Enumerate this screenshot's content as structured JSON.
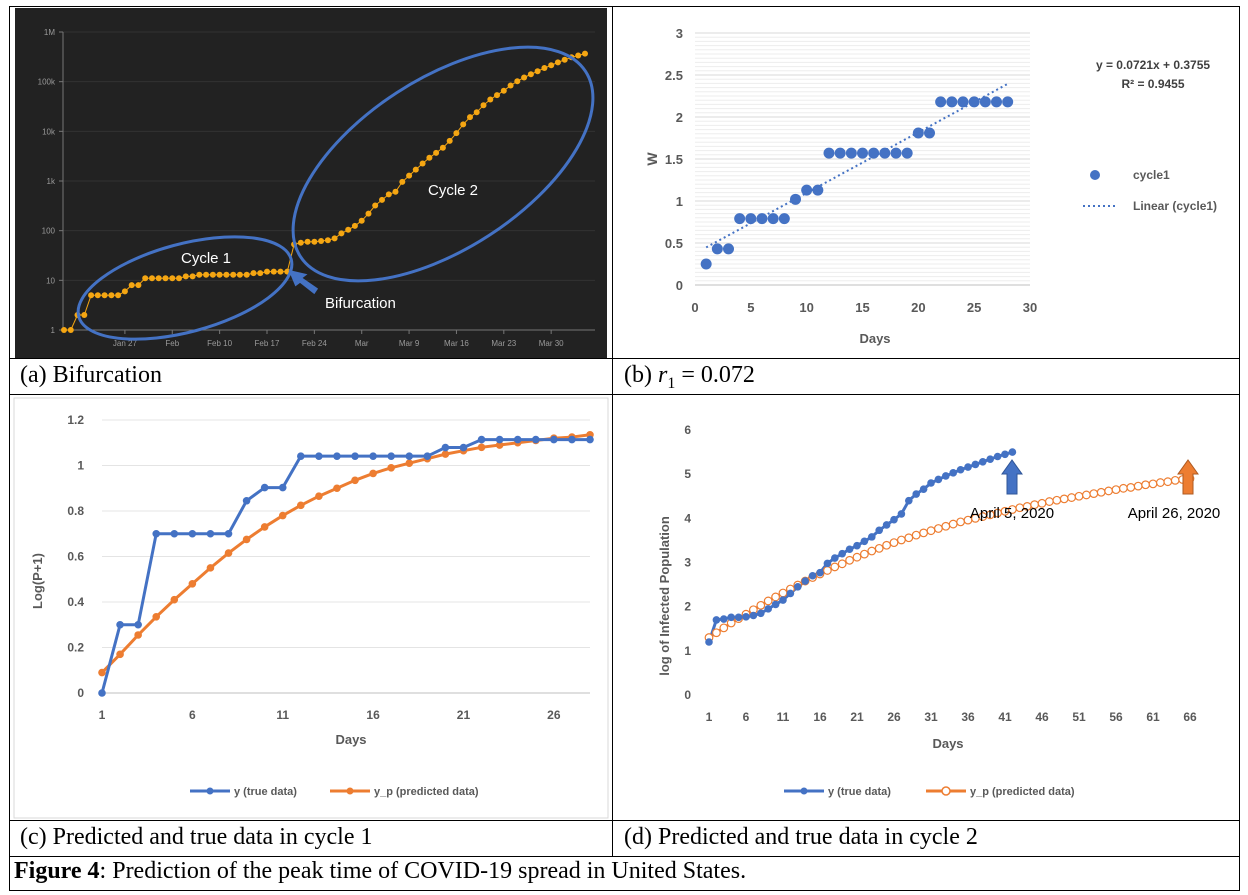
{
  "captions": {
    "a": "(a)  Bifurcation",
    "b_prefix": "(b) ",
    "b_var": "r",
    "b_sub": "1",
    "b_suffix": " = 0.072",
    "c": "(c)  Predicted and true data in cycle 1",
    "d": "(d)  Predicted and true data in cycle 2",
    "figure_label": "Figure 4",
    "figure_text": ": Prediction of the peak time of COVID-19 spread in United States."
  },
  "colors": {
    "orange": "#ED7D31",
    "blue": "#4472C4",
    "dark_bg": "#222222",
    "gold": "#F5A612"
  },
  "chart_data": [
    {
      "type": "scatter",
      "title": "",
      "yscale": "log",
      "ylim": [
        1,
        1000000
      ],
      "ytick_labels": [
        "1M",
        "100k",
        "10k",
        "1k",
        "100",
        "10",
        "1"
      ],
      "xtick_labels": [
        "Jan 27",
        "Feb",
        "Feb 10",
        "Feb 17",
        "Feb 24",
        "Mar",
        "Mar 9",
        "Mar 16",
        "Mar 23",
        "Mar 30"
      ],
      "annotations": [
        "Cycle 1",
        "Cycle 2",
        "Bifurcation"
      ],
      "series": [
        {
          "values": [
            1,
            1,
            2,
            2,
            5,
            5,
            5,
            5,
            5,
            6,
            8,
            8,
            11,
            11,
            11,
            11,
            11,
            11,
            12,
            12,
            13,
            13,
            13,
            13,
            13,
            13,
            13,
            13,
            14,
            14,
            15,
            15,
            15,
            15,
            53,
            57,
            60,
            60,
            62,
            64,
            70,
            88,
            104,
            125,
            159,
            221,
            321,
            417,
            537,
            605,
            959,
            1285,
            1697,
            2247,
            2943,
            3680,
            4663,
            6411,
            9197,
            13779,
            19383,
            24207,
            33546,
            43734,
            53740,
            65778,
            83836,
            101657,
            121478,
            140886,
            161807,
            188172,
            213372,
            243762,
            275586,
            308850,
            337072,
            366667
          ]
        }
      ]
    },
    {
      "type": "scatter",
      "title": "",
      "xlabel": "Days",
      "ylabel": "W",
      "xlim": [
        0,
        30
      ],
      "ylim": [
        0,
        3
      ],
      "xticks": [
        0,
        5,
        10,
        15,
        20,
        25,
        30
      ],
      "yticks": [
        0,
        0.5,
        1,
        1.5,
        2,
        2.5,
        3
      ],
      "x": [
        1,
        2,
        3,
        4,
        5,
        6,
        7,
        8,
        9,
        10,
        11,
        12,
        13,
        14,
        15,
        16,
        17,
        18,
        19,
        20,
        21,
        22,
        23,
        24,
        25,
        26,
        27,
        28
      ],
      "series": [
        {
          "name": "cycle1",
          "values": [
            0.25,
            0.43,
            0.43,
            0.79,
            0.79,
            0.79,
            0.79,
            0.79,
            1.02,
            1.13,
            1.13,
            1.57,
            1.57,
            1.57,
            1.57,
            1.57,
            1.57,
            1.57,
            1.57,
            1.81,
            1.81,
            2.18,
            2.18,
            2.18,
            2.18,
            2.18,
            2.18,
            2.18
          ]
        },
        {
          "name": "Linear (cycle1)",
          "slope": 0.0721,
          "intercept": 0.3755
        }
      ],
      "equation": "y = 0.0721x + 0.3755",
      "r2": "R² = 0.9455"
    },
    {
      "type": "line",
      "title": "",
      "xlabel": "Days",
      "ylabel": "Log(P+1)",
      "xlim": [
        1,
        28
      ],
      "ylim": [
        0,
        1.2
      ],
      "xticks": [
        1,
        6,
        11,
        16,
        21,
        26
      ],
      "yticks": [
        0,
        0.2,
        0.4,
        0.6,
        0.8,
        1,
        1.2
      ],
      "ytick_labels": [
        "0",
        "0.2",
        "0.4",
        "0.6",
        "0.8",
        "1",
        "1.2"
      ],
      "x": [
        1,
        2,
        3,
        4,
        5,
        6,
        7,
        8,
        9,
        10,
        11,
        12,
        13,
        14,
        15,
        16,
        17,
        18,
        19,
        20,
        21,
        22,
        23,
        24,
        25,
        26,
        27,
        28
      ],
      "series": [
        {
          "name": "y (true data)",
          "values": [
            0,
            0.3,
            0.3,
            0.7,
            0.7,
            0.7,
            0.7,
            0.7,
            0.845,
            0.903,
            0.903,
            1.041,
            1.041,
            1.041,
            1.041,
            1.041,
            1.041,
            1.041,
            1.041,
            1.079,
            1.079,
            1.114,
            1.114,
            1.114,
            1.114,
            1.114,
            1.114,
            1.114
          ]
        },
        {
          "name": "y_p (predicted data)",
          "values": [
            0.09,
            0.17,
            0.255,
            0.335,
            0.41,
            0.48,
            0.55,
            0.615,
            0.675,
            0.73,
            0.78,
            0.825,
            0.865,
            0.9,
            0.935,
            0.965,
            0.99,
            1.01,
            1.03,
            1.05,
            1.065,
            1.08,
            1.09,
            1.1,
            1.11,
            1.12,
            1.125,
            1.135
          ]
        }
      ]
    },
    {
      "type": "line",
      "title": "",
      "xlabel": "Days",
      "ylabel": "log of Infected Population",
      "xlim": [
        1,
        66
      ],
      "ylim": [
        0,
        6
      ],
      "xticks": [
        1,
        6,
        11,
        16,
        21,
        26,
        31,
        36,
        41,
        46,
        51,
        56,
        61,
        66
      ],
      "yticks": [
        0,
        1,
        2,
        3,
        4,
        5,
        6
      ],
      "annotations": [
        "April 5, 2020",
        "April 26, 2020"
      ],
      "series": [
        {
          "name": "y (true data)",
          "values": [
            1.2,
            1.7,
            1.72,
            1.76,
            1.76,
            1.77,
            1.8,
            1.85,
            1.95,
            2.05,
            2.15,
            2.3,
            2.45,
            2.58,
            2.7,
            2.77,
            2.98,
            3.1,
            3.2,
            3.3,
            3.38,
            3.48,
            3.58,
            3.73,
            3.85,
            3.97,
            4.1,
            4.4,
            4.55,
            4.66,
            4.8,
            4.88,
            4.96,
            5.03,
            5.1,
            5.16,
            5.22,
            5.28,
            5.34,
            5.4,
            5.45,
            5.5
          ]
        },
        {
          "name": "y_p (predicted data)",
          "values": [
            1.3,
            1.41,
            1.52,
            1.63,
            1.73,
            1.83,
            1.93,
            2.03,
            2.13,
            2.22,
            2.31,
            2.4,
            2.49,
            2.58,
            2.66,
            2.74,
            2.82,
            2.9,
            2.97,
            3.05,
            3.12,
            3.19,
            3.26,
            3.32,
            3.39,
            3.45,
            3.51,
            3.56,
            3.62,
            3.67,
            3.72,
            3.77,
            3.82,
            3.87,
            3.92,
            3.96,
            4,
            4.04,
            4.08,
            4.12,
            4.16,
            4.2,
            4.24,
            4.27,
            4.31,
            4.34,
            4.38,
            4.41,
            4.44,
            4.47,
            4.5,
            4.53,
            4.56,
            4.59,
            4.62,
            4.65,
            4.68,
            4.7,
            4.73,
            4.76,
            4.78,
            4.81,
            4.83,
            4.86,
            4.88,
            4.9
          ]
        }
      ]
    }
  ]
}
